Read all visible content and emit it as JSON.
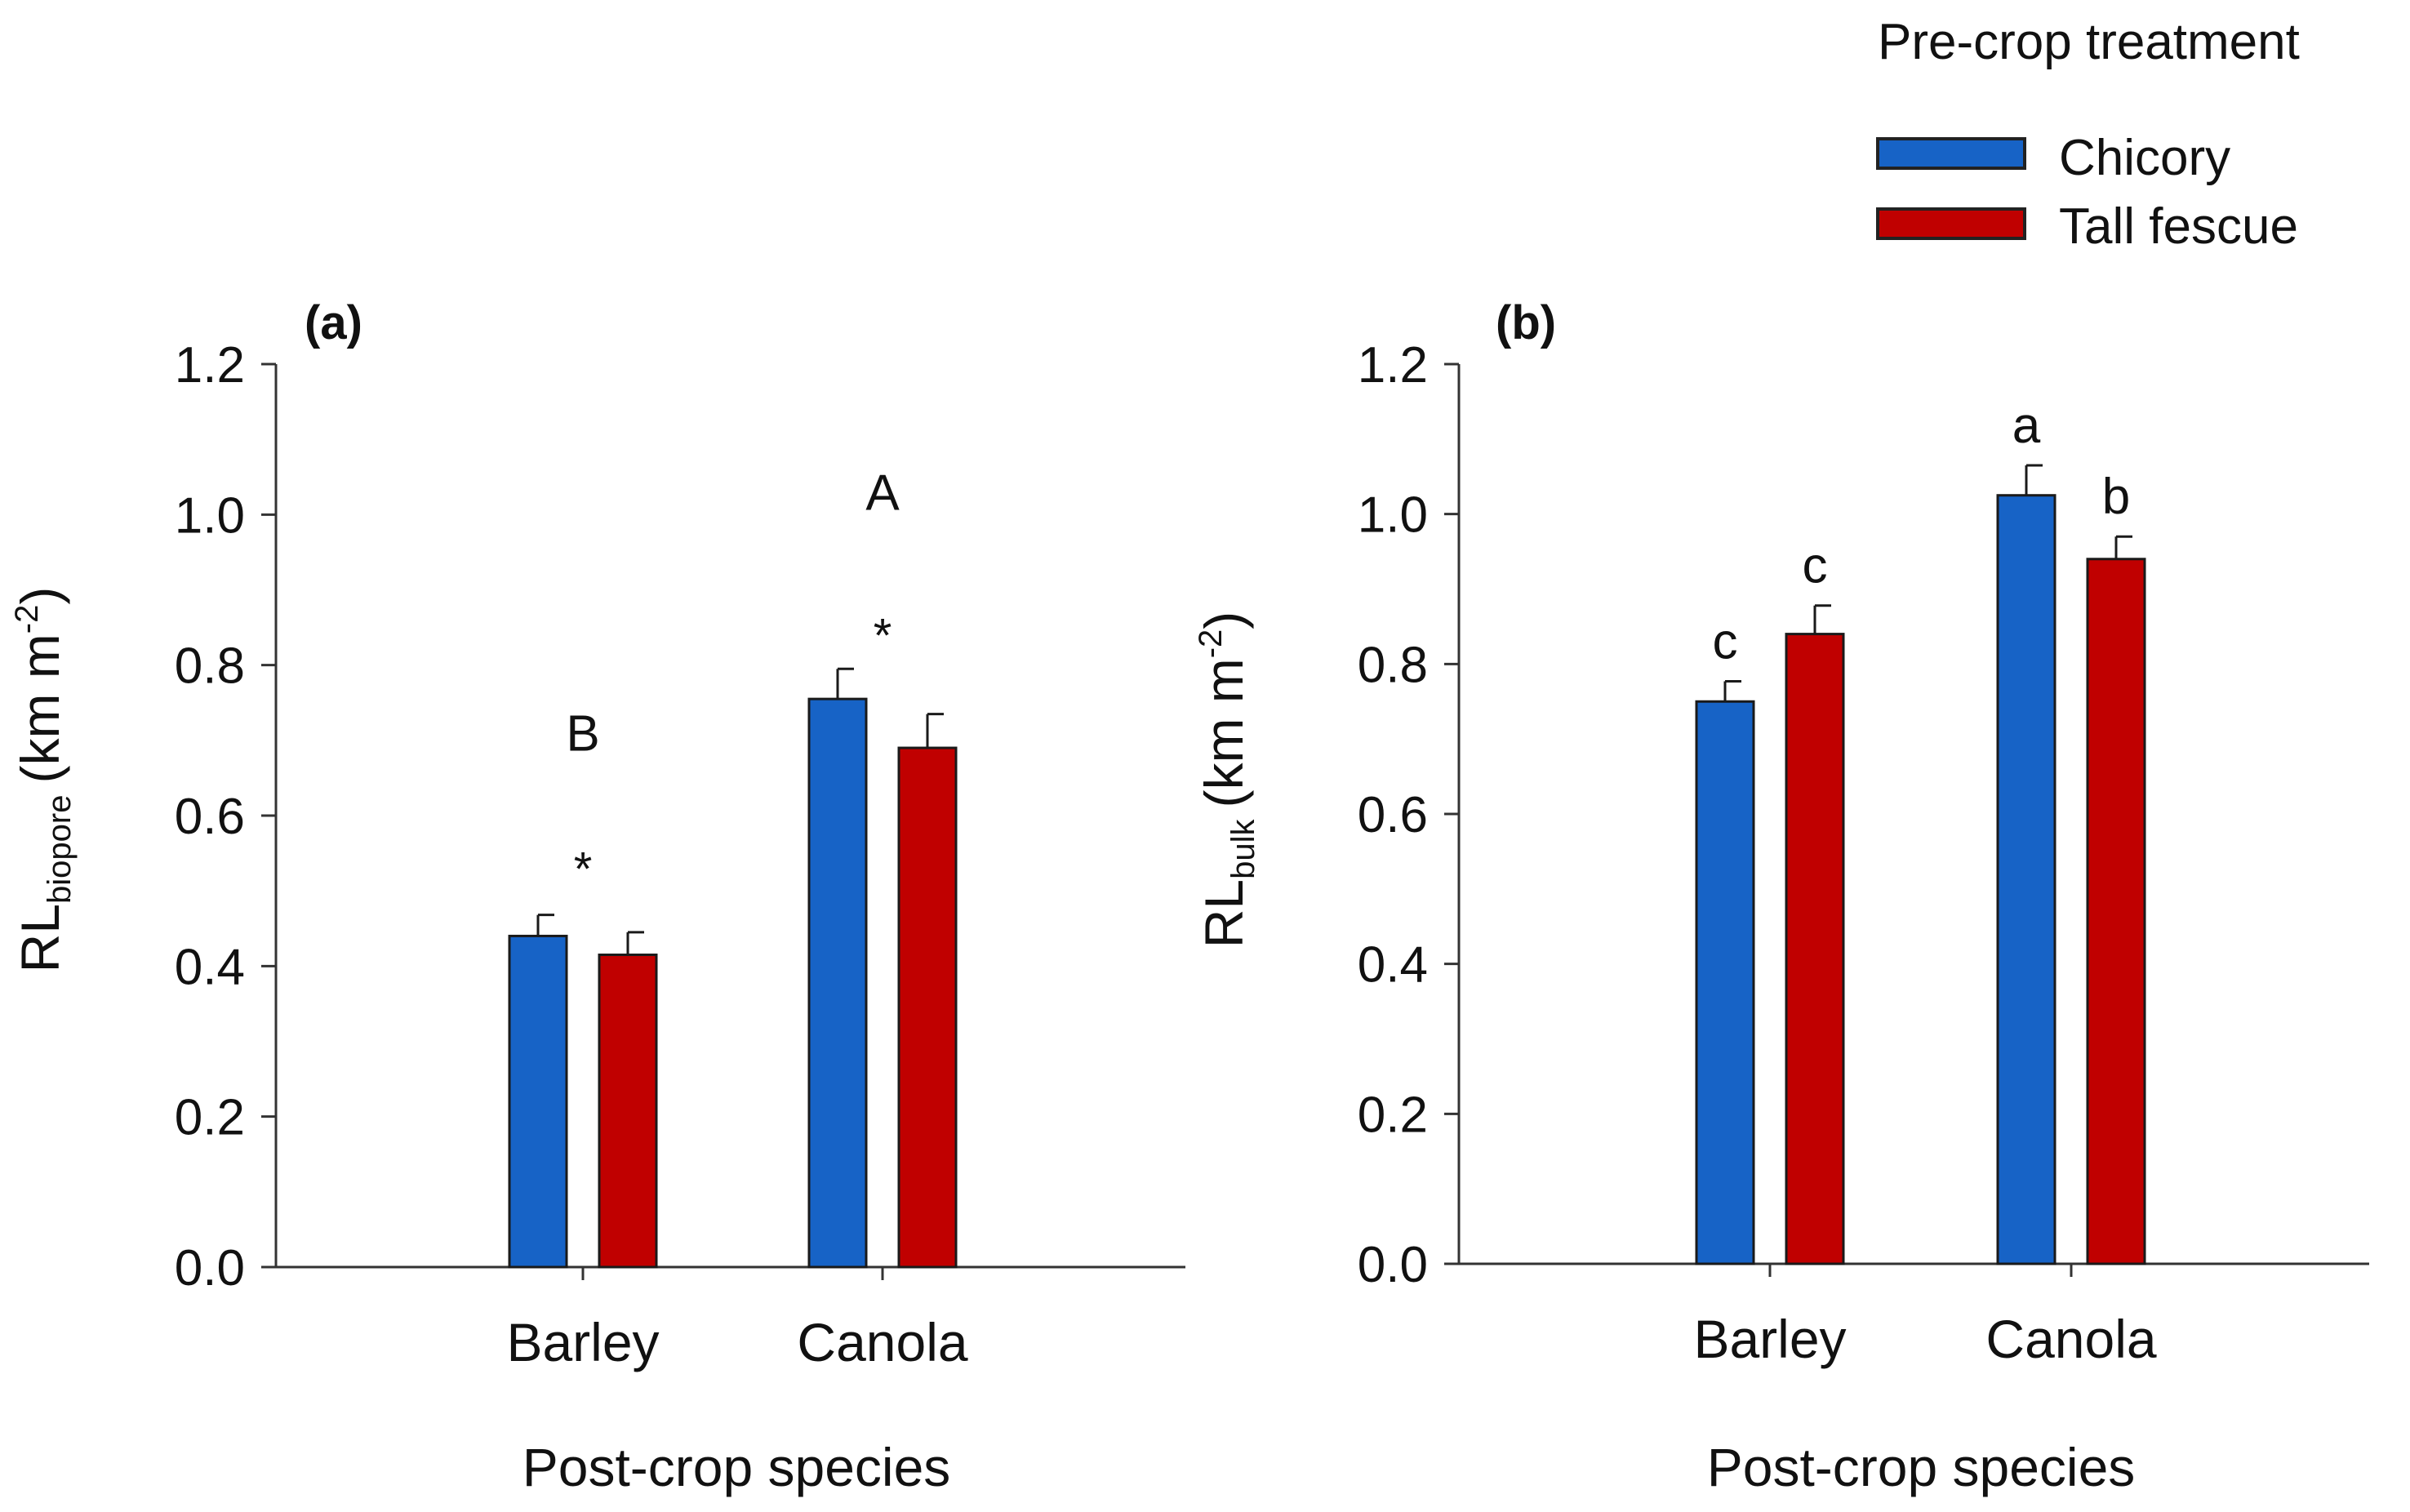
{
  "legend": {
    "title": "Pre-crop treatment",
    "entries": [
      {
        "label": "Chicory",
        "color": "#1763c6"
      },
      {
        "label": "Tall fescue",
        "color": "#c00000"
      }
    ]
  },
  "chart_data": [
    {
      "type": "bar",
      "panel_label": "(a)",
      "xlabel": "Post-crop species",
      "ylabel_main": "RL",
      "ylabel_sub": "biopore",
      "ylabel_units": "(km m",
      "ylabel_sup": "-2",
      "ylabel_close": ")",
      "ylim": [
        0,
        1.2
      ],
      "yticks": [
        "0.0",
        "0.2",
        "0.4",
        "0.6",
        "0.8",
        "1.0",
        "1.2"
      ],
      "categories": [
        "Barley",
        "Canola"
      ],
      "series": [
        {
          "name": "Chicory",
          "color": "#1763c6",
          "values": [
            0.44,
            0.755
          ],
          "errors": [
            0.028,
            0.04
          ]
        },
        {
          "name": "Tall fescue",
          "color": "#c00000",
          "values": [
            0.415,
            0.69
          ],
          "errors": [
            0.03,
            0.045
          ]
        }
      ],
      "group_annotations": [
        {
          "category": "Barley",
          "letter": "B",
          "letter_y": 0.71,
          "star": "*",
          "star_y": 0.54
        },
        {
          "category": "Canola",
          "letter": "A",
          "letter_y": 1.03,
          "star": "*",
          "star_y": 0.85
        }
      ],
      "bar_annotations": []
    },
    {
      "type": "bar",
      "panel_label": "(b)",
      "xlabel": "Post-crop species",
      "ylabel_main": "RL",
      "ylabel_sub": "bulk",
      "ylabel_units": "(km m",
      "ylabel_sup": "-2",
      "ylabel_close": ")",
      "ylim": [
        0,
        1.2
      ],
      "yticks": [
        "0.0",
        "0.2",
        "0.4",
        "0.6",
        "0.8",
        "1.0",
        "1.2"
      ],
      "categories": [
        "Barley",
        "Canola"
      ],
      "series": [
        {
          "name": "Chicory",
          "color": "#1763c6",
          "values": [
            0.75,
            1.025
          ],
          "errors": [
            0.027,
            0.04
          ]
        },
        {
          "name": "Tall fescue",
          "color": "#c00000",
          "values": [
            0.84,
            0.94
          ],
          "errors": [
            0.038,
            0.03
          ]
        }
      ],
      "group_annotations": [],
      "bar_annotations": [
        {
          "series": 0,
          "category": 0,
          "text": "c"
        },
        {
          "series": 1,
          "category": 0,
          "text": "c"
        },
        {
          "series": 0,
          "category": 1,
          "text": "a"
        },
        {
          "series": 1,
          "category": 1,
          "text": "b"
        }
      ]
    }
  ]
}
